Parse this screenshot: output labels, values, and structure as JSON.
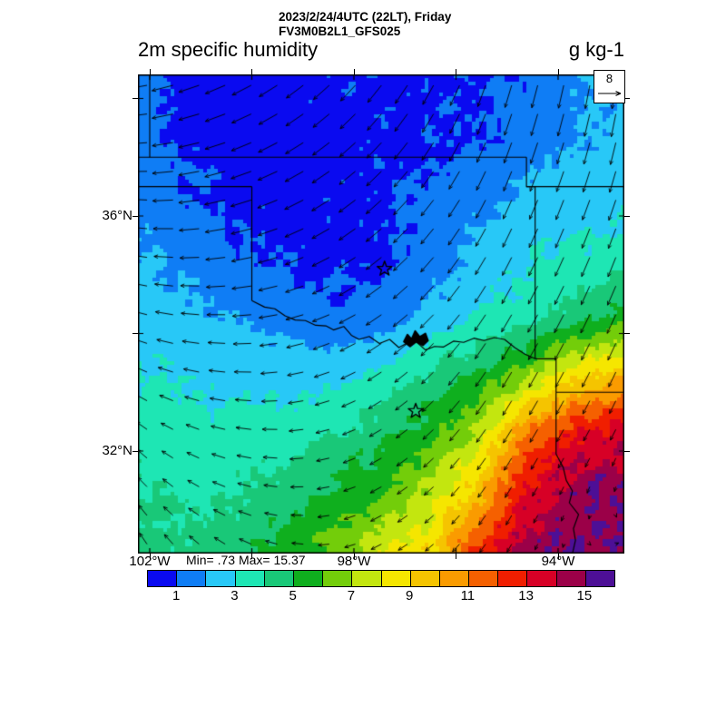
{
  "header": {
    "datetime": "2023/2/24/4UTC (22LT), Friday",
    "model": "FV3M0B2L1_GFS025",
    "title": "2m specific humidity",
    "units": "g kg-1"
  },
  "map": {
    "min_max_label": "Min= .73 Max= 15.37",
    "lat_ticks": [
      {
        "label": "36°N",
        "lat": 36
      },
      {
        "label": "32°N",
        "lat": 32
      }
    ],
    "lon_ticks": [
      {
        "label": "102°W",
        "lon": 102
      },
      {
        "label": "98°W",
        "lon": 98
      },
      {
        "label": "94°W",
        "lon": 94
      }
    ],
    "unlabeled_lat_ticks": [
      38,
      34
    ],
    "unlabeled_lon_ticks": [
      100,
      96
    ],
    "reference_vector": {
      "label": "8",
      "speed_ms": 8
    }
  },
  "colorbar": {
    "tick_labels": [
      "1",
      "3",
      "5",
      "7",
      "9",
      "11",
      "13",
      "15"
    ],
    "tick_values": [
      1,
      3,
      5,
      7,
      9,
      11,
      13,
      15
    ],
    "colors": [
      "#0a0af0",
      "#0f7df5",
      "#28c8f7",
      "#1ee6b4",
      "#19c878",
      "#0faf1e",
      "#73cd0a",
      "#c3e60f",
      "#f5e600",
      "#f5c400",
      "#fa9b00",
      "#f56000",
      "#f01e00",
      "#d70026",
      "#9b0048",
      "#4d0f96"
    ]
  },
  "chart_data": {
    "type": "heatmap",
    "title": "2m specific humidity",
    "units": "g kg-1",
    "valid_time": "2023/2/24/4UTC (22LT), Friday",
    "model_run": "FV3M0B2L1_GFS025",
    "value_min": 0.73,
    "value_max": 15.37,
    "band_edges": [
      1,
      2,
      3,
      4,
      5,
      6,
      7,
      8,
      9,
      10,
      11,
      12,
      13,
      14,
      15
    ],
    "band_colors": [
      "#0a0af0",
      "#0f7df5",
      "#28c8f7",
      "#1ee6b4",
      "#19c878",
      "#0faf1e",
      "#73cd0a",
      "#c3e60f",
      "#f5e600",
      "#f5c400",
      "#fa9b00",
      "#f56000",
      "#f01e00",
      "#d70026",
      "#9b0048",
      "#4d0f96"
    ],
    "lon_w_range": [
      102.3,
      92.7
    ],
    "lat_n_range": [
      38.3,
      30.3
    ],
    "humidity_grid": {
      "lon_w_start": 102.3,
      "lon_w_step": -0.96,
      "lat_n_start": 38.3,
      "lat_n_step": -1.0,
      "values": [
        [
          1.4,
          0.8,
          0.75,
          0.75,
          0.8,
          0.85,
          0.9,
          0.95,
          1.1,
          1.9,
          2.2
        ],
        [
          1.3,
          0.85,
          0.75,
          0.75,
          0.8,
          0.85,
          0.9,
          0.95,
          1.4,
          2.0,
          2.3
        ],
        [
          1.7,
          1.1,
          0.85,
          0.8,
          0.8,
          0.85,
          1.2,
          1.6,
          2.3,
          2.5,
          2.7
        ],
        [
          2.3,
          1.7,
          1.2,
          0.9,
          0.85,
          0.85,
          1.3,
          2.4,
          2.9,
          3.2,
          3.5
        ],
        [
          2.6,
          2.3,
          1.9,
          1.5,
          1.2,
          1.4,
          2.3,
          2.9,
          3.5,
          4.5,
          5.3
        ],
        [
          3.1,
          2.8,
          2.7,
          2.6,
          2.7,
          3.2,
          4.0,
          5.1,
          6.6,
          8.7,
          9.7
        ],
        [
          3.6,
          3.4,
          3.3,
          3.5,
          3.9,
          4.6,
          5.6,
          7.3,
          11.0,
          13.0,
          13.6
        ],
        [
          4.0,
          3.8,
          3.9,
          4.4,
          5.1,
          5.9,
          7.2,
          9.5,
          13.2,
          14.7,
          14.9
        ],
        [
          4.3,
          4.2,
          4.6,
          5.3,
          6.3,
          7.7,
          8.8,
          12.5,
          14.6,
          15.0,
          15.1
        ]
      ]
    },
    "wind_grid": {
      "ref_ms": 8,
      "lon_w_start": 102.3,
      "lon_w_step": -2.4,
      "lat_n_start": 38.3,
      "lat_n_step": -2.0,
      "u": [
        [
          -6.5,
          -5.5,
          -4.0,
          -2.0,
          -1.0
        ],
        [
          -6.0,
          -6.0,
          -4.5,
          -2.5,
          -2.0
        ],
        [
          -5.0,
          -5.5,
          -4.5,
          -3.0,
          -2.5
        ],
        [
          -3.0,
          -4.5,
          -3.5,
          -2.5,
          -1.5
        ],
        [
          -2.0,
          -3.5,
          -3.0,
          -1.5,
          1.2
        ]
      ],
      "v": [
        [
          -1.0,
          -3.0,
          -5.0,
          -6.5,
          -7.0
        ],
        [
          0.5,
          -2.0,
          -4.0,
          -5.5,
          -6.0
        ],
        [
          1.5,
          -0.5,
          -3.0,
          -5.0,
          -5.5
        ],
        [
          2.5,
          0.5,
          -2.0,
          -4.0,
          -3.0
        ],
        [
          3.5,
          1.5,
          -1.5,
          -2.5,
          0.8
        ]
      ]
    },
    "city_markers": [
      {
        "symbol": "star",
        "lon_w": 97.4,
        "lat_n": 35.1
      },
      {
        "symbol": "star",
        "lon_w": 96.79,
        "lat_n": 32.68
      }
    ],
    "lake_polygon": [
      [
        97.02,
        33.86
      ],
      [
        96.95,
        33.98
      ],
      [
        96.87,
        33.9
      ],
      [
        96.8,
        34.04
      ],
      [
        96.71,
        33.94
      ],
      [
        96.6,
        34.0
      ],
      [
        96.55,
        33.88
      ],
      [
        96.65,
        33.8
      ],
      [
        96.78,
        33.86
      ],
      [
        96.9,
        33.78
      ],
      [
        97.02,
        33.86
      ]
    ],
    "state_borders": [
      {
        "name": "kansas-colorado-oklahoma-37n",
        "points": [
          [
            102.35,
            37
          ],
          [
            94.62,
            37
          ]
        ]
      },
      {
        "name": "kansas-west-102w",
        "points": [
          [
            102,
            38.45
          ],
          [
            102,
            37
          ]
        ]
      },
      {
        "name": "missouri-arkansas-36-5n",
        "points": [
          [
            94.62,
            36.5
          ],
          [
            92.65,
            36.5
          ]
        ]
      },
      {
        "name": "oklahoma-missouri-arkansas-west",
        "points": [
          [
            94.62,
            37
          ],
          [
            94.62,
            36.5
          ],
          [
            94.45,
            36.5
          ],
          [
            94.45,
            33.57
          ]
        ]
      },
      {
        "name": "oklahoma-panhandle-south",
        "points": [
          [
            102.35,
            36.5
          ],
          [
            100,
            36.5
          ]
        ]
      },
      {
        "name": "texas-oklahoma-100w",
        "points": [
          [
            100,
            36.5
          ],
          [
            100,
            34.56
          ]
        ]
      },
      {
        "name": "red-river-tx-ok",
        "points": [
          [
            100,
            34.56
          ],
          [
            99.75,
            34.45
          ],
          [
            99.55,
            34.42
          ],
          [
            99.35,
            34.3
          ],
          [
            99.15,
            34.23
          ],
          [
            98.95,
            34.22
          ],
          [
            98.75,
            34.14
          ],
          [
            98.55,
            34.13
          ],
          [
            98.4,
            34.06
          ],
          [
            98.2,
            34.12
          ],
          [
            98.05,
            33.97
          ],
          [
            97.9,
            33.9
          ],
          [
            97.7,
            33.95
          ],
          [
            97.5,
            33.83
          ],
          [
            97.3,
            33.9
          ],
          [
            97.12,
            33.76
          ],
          [
            96.95,
            33.84
          ],
          [
            96.78,
            33.86
          ],
          [
            96.6,
            33.72
          ],
          [
            96.42,
            33.78
          ],
          [
            96.25,
            33.77
          ],
          [
            96.05,
            33.87
          ],
          [
            95.85,
            33.85
          ],
          [
            95.65,
            33.92
          ],
          [
            95.45,
            33.88
          ],
          [
            95.25,
            33.93
          ],
          [
            95.05,
            33.9
          ],
          [
            94.85,
            33.76
          ],
          [
            94.65,
            33.65
          ],
          [
            94.45,
            33.57
          ]
        ]
      },
      {
        "name": "texas-arkansas",
        "points": [
          [
            94.45,
            33.57
          ],
          [
            94.04,
            33.57
          ],
          [
            94.04,
            33.0
          ]
        ]
      },
      {
        "name": "arkansas-louisiana-33n",
        "points": [
          [
            94.04,
            33.0
          ],
          [
            92.65,
            33.0
          ]
        ]
      },
      {
        "name": "texas-louisiana-sabine",
        "points": [
          [
            94.04,
            33.0
          ],
          [
            94.04,
            31.95
          ],
          [
            93.9,
            31.72
          ],
          [
            93.84,
            31.5
          ],
          [
            93.72,
            31.32
          ],
          [
            93.78,
            31.12
          ],
          [
            93.6,
            30.92
          ],
          [
            93.7,
            30.68
          ],
          [
            93.66,
            30.48
          ],
          [
            93.72,
            30.25
          ]
        ]
      }
    ]
  }
}
